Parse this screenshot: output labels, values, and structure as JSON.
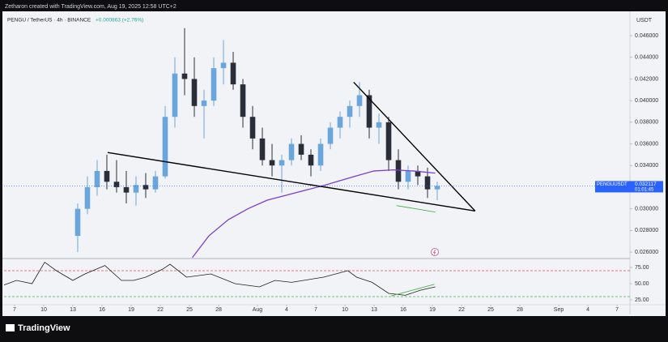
{
  "header": {
    "credit": "Zetharon created with TradingView.com, Aug 19, 2025 12:58 UTC+2",
    "symbol": "PENGU / TetherUS · 4h · BINANCE",
    "change": "+0.000863 (+2.76%)",
    "currency": "USDT",
    "tag_symbol": "PENGUUSDT",
    "countdown": "01:01:45",
    "logo": "TradingView"
  },
  "chart_data": [
    {
      "type": "candlestick",
      "up_color": "#6aa6dc",
      "down_color": "#2a2e39",
      "x": [
        12.5,
        13.5,
        14.5,
        15.5,
        16.5,
        17.5,
        18.5,
        19.5,
        20.5,
        21.5,
        22.5,
        23.5,
        24.5,
        25.5,
        26.5,
        27.5,
        28.5,
        29.5,
        30.5,
        31.5,
        32.5,
        33.5,
        34.5,
        35.5,
        36.5,
        37.5,
        38.5,
        39.5,
        40.5,
        41.5,
        42.5,
        43.5,
        44.5,
        45.5,
        46.5,
        47.5,
        48.5,
        49.5
      ],
      "open": [
        0.0275,
        0.03,
        0.032,
        0.0335,
        0.0325,
        0.032,
        0.0315,
        0.0322,
        0.0318,
        0.033,
        0.0385,
        0.0425,
        0.042,
        0.0395,
        0.04,
        0.043,
        0.0435,
        0.0415,
        0.0385,
        0.0365,
        0.0345,
        0.034,
        0.0345,
        0.036,
        0.035,
        0.034,
        0.036,
        0.0375,
        0.0385,
        0.0395,
        0.0405,
        0.0375,
        0.038,
        0.0345,
        0.0325,
        0.0335,
        0.033,
        0.0318
      ],
      "high": [
        0.0305,
        0.033,
        0.0345,
        0.035,
        0.0345,
        0.0335,
        0.033,
        0.0333,
        0.0335,
        0.0395,
        0.044,
        0.0467,
        0.044,
        0.041,
        0.044,
        0.0456,
        0.0445,
        0.042,
        0.0395,
        0.0375,
        0.036,
        0.035,
        0.0365,
        0.0368,
        0.0355,
        0.0365,
        0.038,
        0.039,
        0.04,
        0.0417,
        0.041,
        0.0388,
        0.0385,
        0.0355,
        0.034,
        0.034,
        0.0338,
        0.0325
      ],
      "low": [
        0.026,
        0.0295,
        0.0312,
        0.0318,
        0.0315,
        0.0305,
        0.0303,
        0.031,
        0.0315,
        0.0328,
        0.0375,
        0.0405,
        0.0385,
        0.0365,
        0.0395,
        0.0415,
        0.041,
        0.0375,
        0.0355,
        0.034,
        0.033,
        0.0315,
        0.034,
        0.0345,
        0.033,
        0.0335,
        0.0355,
        0.0365,
        0.0375,
        0.0385,
        0.0365,
        0.036,
        0.0335,
        0.0318,
        0.0318,
        0.0322,
        0.031,
        0.0308
      ],
      "close": [
        0.03,
        0.032,
        0.0335,
        0.0325,
        0.032,
        0.0315,
        0.0322,
        0.0318,
        0.033,
        0.0385,
        0.0425,
        0.042,
        0.0395,
        0.04,
        0.043,
        0.0435,
        0.0415,
        0.0385,
        0.0365,
        0.0345,
        0.034,
        0.0345,
        0.036,
        0.035,
        0.034,
        0.036,
        0.0375,
        0.0385,
        0.0395,
        0.0405,
        0.0375,
        0.038,
        0.0345,
        0.0325,
        0.0335,
        0.033,
        0.0318,
        0.032117
      ],
      "ma": {
        "color": "#7b3fd0",
        "x": [
          24.3,
          26,
          28,
          30,
          32,
          35,
          38,
          41,
          43,
          45,
          47,
          49.3
        ],
        "values": [
          0.0255,
          0.0275,
          0.029,
          0.03,
          0.0308,
          0.0315,
          0.0322,
          0.033,
          0.0335,
          0.0336,
          0.0335,
          0.0333
        ]
      },
      "drawings": [
        {
          "color": "#000000",
          "x": [
            15.58,
            53.4
          ],
          "y": [
            0.0352,
            0.0298
          ]
        },
        {
          "color": "#000000",
          "x": [
            40.9,
            53.4
          ],
          "y": [
            0.0417,
            0.0298
          ]
        },
        {
          "color": "#4caf50",
          "x": [
            45.3,
            49.3
          ],
          "y": [
            0.0303,
            0.0297
          ]
        }
      ],
      "price_line_color": "#2962ff",
      "xlim": [
        4.92,
        69.33
      ],
      "ylim": [
        0.02548,
        0.0478
      ],
      "yticks": [
        {
          "value": 0.026,
          "label": "0.026000"
        },
        {
          "value": 0.028,
          "label": "0.028000"
        },
        {
          "value": 0.03,
          "label": "0.030000"
        },
        {
          "value": 0.032,
          "label": "0.032000"
        },
        {
          "value": 0.034,
          "label": "0.034000"
        },
        {
          "value": 0.036,
          "label": "0.036000"
        },
        {
          "value": 0.038,
          "label": "0.038000"
        },
        {
          "value": 0.04,
          "label": "0.040000"
        },
        {
          "value": 0.042,
          "label": "0.042000"
        },
        {
          "value": 0.044,
          "label": "0.044000"
        },
        {
          "value": 0.046,
          "label": "0.046000"
        }
      ]
    },
    {
      "type": "line",
      "color": "#1e1e1e",
      "x": [
        4.92,
        6.2,
        7.8,
        9.1,
        10.3,
        12,
        13.25,
        15.3,
        17,
        18.25,
        19.5,
        21.2,
        22,
        23.7,
        26.2,
        28.7,
        31.2,
        32.8,
        34.5,
        37.8,
        40.3,
        41.2,
        42.8,
        44.5,
        46.2,
        47.8,
        49.3
      ],
      "values": [
        48,
        55,
        50,
        83,
        70,
        55,
        65,
        78,
        55,
        55,
        60,
        72,
        80,
        60,
        65,
        50,
        45,
        55,
        52,
        60,
        70,
        60,
        52,
        35,
        32,
        40,
        45
      ],
      "levels": [
        {
          "value": 70,
          "color": "#e05050"
        },
        {
          "value": 30,
          "color": "#4caf50"
        }
      ],
      "divergence": {
        "color": "#4caf50",
        "x": [
          44.75,
          49.2
        ],
        "y": [
          31,
          49
        ]
      },
      "xlim": [
        4.92,
        69.33
      ],
      "ylim": [
        18.75,
        87.5
      ],
      "yticks": [
        {
          "value": 25,
          "label": "25.00"
        },
        {
          "value": 50,
          "label": "50.00"
        },
        {
          "value": 75,
          "label": "75.00"
        }
      ],
      "xticks": [
        {
          "value": 6,
          "label": "7"
        },
        {
          "value": 9,
          "label": "10"
        },
        {
          "value": 12,
          "label": "13"
        },
        {
          "value": 15,
          "label": "16"
        },
        {
          "value": 18,
          "label": "19"
        },
        {
          "value": 21,
          "label": "22"
        },
        {
          "value": 24,
          "label": "25"
        },
        {
          "value": 27,
          "label": "28"
        },
        {
          "value": 31,
          "label": "Aug"
        },
        {
          "value": 34,
          "label": "4"
        },
        {
          "value": 37,
          "label": "7"
        },
        {
          "value": 40,
          "label": "10"
        },
        {
          "value": 43,
          "label": "13"
        },
        {
          "value": 46,
          "label": "16"
        },
        {
          "value": 49,
          "label": "19"
        },
        {
          "value": 52,
          "label": "22"
        },
        {
          "value": 55,
          "label": "25"
        },
        {
          "value": 58,
          "label": "28"
        },
        {
          "value": 62,
          "label": "Sep"
        },
        {
          "value": 65,
          "label": "4"
        },
        {
          "value": 68,
          "label": "7"
        }
      ]
    }
  ]
}
